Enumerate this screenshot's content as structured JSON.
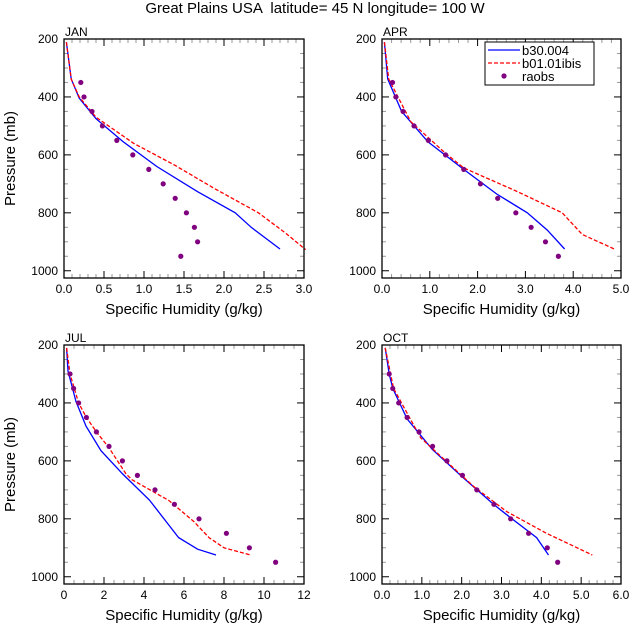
{
  "title": "Great Plains USA  latitude= 45 N longitude= 100 W",
  "legend": {
    "placement": "top-right of APR panel",
    "entries": [
      "b30.004",
      "b01.01ibis",
      "raobs"
    ]
  },
  "colors": {
    "b30.004": "#0000ff",
    "b01.01ibis": "#ff0000",
    "raobs": "#800080"
  },
  "chart_data": [
    {
      "type": "line",
      "panel_label": "JAN",
      "xlabel": "Specific Humidity (g/kg)",
      "ylabel": "Pressure (mb)",
      "xlim": [
        0,
        3.0
      ],
      "ylim": [
        200,
        1025
      ],
      "y_reversed": true,
      "xticks": [
        "0.0",
        "0.5",
        "1.0",
        "1.5",
        "2.0",
        "2.5",
        "3.0"
      ],
      "yticks": [
        "200",
        "400",
        "600",
        "800",
        "1000"
      ],
      "series": [
        {
          "name": "b30.004",
          "style": "solid",
          "x": [
            0.03,
            0.09,
            0.19,
            0.4,
            0.74,
            1.16,
            1.67,
            2.14,
            2.34,
            2.7
          ],
          "y": [
            211,
            338,
            404,
            475,
            555,
            640,
            727,
            800,
            850,
            925
          ]
        },
        {
          "name": "b01.01ibis",
          "style": "dashed",
          "x": [
            0.03,
            0.09,
            0.19,
            0.4,
            0.87,
            1.38,
            1.88,
            2.43,
            2.77,
            3.02
          ],
          "y": [
            211,
            338,
            400,
            470,
            560,
            635,
            716,
            800,
            870,
            927
          ]
        },
        {
          "name": "raobs",
          "style": "markers",
          "x": [
            0.21,
            0.25,
            0.35,
            0.48,
            0.66,
            0.86,
            1.06,
            1.24,
            1.39,
            1.53,
            1.63,
            1.67,
            1.46
          ],
          "y": [
            350,
            400,
            450,
            500,
            550,
            600,
            650,
            700,
            750,
            800,
            850,
            900,
            950
          ]
        }
      ]
    },
    {
      "type": "line",
      "panel_label": "APR",
      "xlabel": "Specific Humidity (g/kg)",
      "ylabel": "",
      "xlim": [
        0,
        5.0
      ],
      "ylim": [
        200,
        1025
      ],
      "y_reversed": true,
      "xticks": [
        "0.0",
        "1.0",
        "2.0",
        "3.0",
        "4.0",
        "5.0"
      ],
      "yticks": [
        "200",
        "400",
        "600",
        "800",
        "1000"
      ],
      "series": [
        {
          "name": "b30.004",
          "style": "solid",
          "x": [
            0.05,
            0.12,
            0.41,
            0.96,
            1.71,
            2.4,
            3.04,
            3.46,
            3.82
          ],
          "y": [
            211,
            338,
            450,
            555,
            650,
            735,
            800,
            860,
            925
          ]
        },
        {
          "name": "b01.01ibis",
          "style": "dashed",
          "x": [
            0.05,
            0.14,
            0.6,
            1.33,
            1.71,
            2.12,
            2.81,
            3.77,
            4.19,
            4.86
          ],
          "y": [
            211,
            338,
            485,
            595,
            645,
            675,
            725,
            800,
            875,
            925
          ]
        },
        {
          "name": "raobs",
          "style": "markers",
          "x": [
            0.22,
            0.29,
            0.44,
            0.67,
            0.97,
            1.33,
            1.71,
            2.06,
            2.42,
            2.8,
            3.12,
            3.42,
            3.69
          ],
          "y": [
            350,
            400,
            450,
            500,
            550,
            600,
            650,
            700,
            750,
            800,
            850,
            900,
            950
          ]
        }
      ]
    },
    {
      "type": "line",
      "panel_label": "JUL",
      "xlabel": "Specific Humidity (g/kg)",
      "ylabel": "Pressure (mb)",
      "xlim": [
        0,
        12
      ],
      "ylim": [
        200,
        1025
      ],
      "y_reversed": true,
      "xticks": [
        "0",
        "2",
        "4",
        "6",
        "8",
        "10",
        "12"
      ],
      "yticks": [
        "200",
        "400",
        "600",
        "800",
        "1000"
      ],
      "series": [
        {
          "name": "b30.004",
          "style": "solid",
          "x": [
            0.13,
            0.2,
            0.6,
            1.1,
            1.85,
            2.93,
            4.27,
            5.73,
            6.68,
            7.6
          ],
          "y": [
            210,
            290,
            395,
            480,
            565,
            645,
            735,
            865,
            905,
            925
          ]
        },
        {
          "name": "b01.01ibis",
          "style": "dashed",
          "x": [
            0.13,
            0.3,
            0.73,
            1.12,
            1.62,
            2.25,
            3.1,
            3.4,
            5.25,
            6.5,
            7.25,
            8.0,
            9.33
          ],
          "y": [
            210,
            300,
            400,
            450,
            500,
            555,
            645,
            665,
            737,
            810,
            865,
            900,
            925
          ]
        },
        {
          "name": "raobs",
          "style": "markers",
          "x": [
            0.3,
            0.48,
            0.73,
            1.12,
            1.62,
            2.25,
            2.92,
            3.67,
            4.55,
            5.52,
            6.75,
            8.12,
            9.27,
            10.58
          ],
          "y": [
            300,
            350,
            400,
            450,
            500,
            550,
            600,
            650,
            700,
            750,
            800,
            850,
            900,
            950
          ]
        }
      ]
    },
    {
      "type": "line",
      "panel_label": "OCT",
      "xlabel": "Specific Humidity (g/kg)",
      "ylabel": "",
      "xlim": [
        0,
        6.0
      ],
      "ylim": [
        200,
        1025
      ],
      "y_reversed": true,
      "xticks": [
        "0.0",
        "1.0",
        "2.0",
        "3.0",
        "4.0",
        "5.0",
        "6.0"
      ],
      "yticks": [
        "200",
        "400",
        "600",
        "800",
        "1000"
      ],
      "series": [
        {
          "name": "b30.004",
          "style": "solid",
          "x": [
            0.08,
            0.18,
            0.27,
            0.63,
            1.26,
            2.01,
            2.8,
            3.26,
            3.88,
            4.18
          ],
          "y": [
            210,
            300,
            350,
            455,
            560,
            655,
            750,
            800,
            865,
            925
          ]
        },
        {
          "name": "b01.01ibis",
          "style": "dashed",
          "x": [
            0.08,
            0.29,
            0.97,
            2.3,
            3.13,
            4.13,
            5.28
          ],
          "y": [
            210,
            350,
            520,
            688,
            775,
            850,
            925
          ]
        },
        {
          "name": "raobs",
          "style": "markers",
          "x": [
            0.18,
            0.27,
            0.42,
            0.63,
            0.93,
            1.27,
            1.63,
            2.02,
            2.38,
            2.81,
            3.23,
            3.68,
            4.15,
            4.41
          ],
          "y": [
            300,
            350,
            400,
            450,
            500,
            550,
            600,
            650,
            700,
            750,
            800,
            850,
            900,
            950
          ]
        }
      ]
    }
  ]
}
